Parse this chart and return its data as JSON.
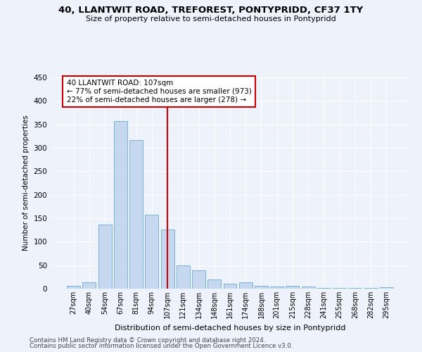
{
  "title": "40, LLANTWIT ROAD, TREFOREST, PONTYPRIDD, CF37 1TY",
  "subtitle": "Size of property relative to semi-detached houses in Pontypridd",
  "xlabel": "Distribution of semi-detached houses by size in Pontypridd",
  "ylabel": "Number of semi-detached properties",
  "categories": [
    "27sqm",
    "40sqm",
    "54sqm",
    "67sqm",
    "81sqm",
    "94sqm",
    "107sqm",
    "121sqm",
    "134sqm",
    "148sqm",
    "161sqm",
    "174sqm",
    "188sqm",
    "201sqm",
    "215sqm",
    "228sqm",
    "241sqm",
    "255sqm",
    "268sqm",
    "282sqm",
    "295sqm"
  ],
  "values": [
    6,
    13,
    137,
    357,
    317,
    157,
    126,
    50,
    39,
    20,
    10,
    14,
    6,
    5,
    6,
    5,
    2,
    1,
    1,
    1,
    3
  ],
  "bar_color": "#c5d8f0",
  "bar_edge_color": "#6aabd2",
  "vline_x_index": 6,
  "vline_color": "#cc0000",
  "annotation_line1": "40 LLANTWIT ROAD: 107sqm",
  "annotation_line2": "← 77% of semi-detached houses are smaller (973)",
  "annotation_line3": "22% of semi-detached houses are larger (278) →",
  "annotation_box_color": "#ffffff",
  "annotation_box_edge_color": "#cc0000",
  "ylim": [
    0,
    450
  ],
  "yticks": [
    0,
    50,
    100,
    150,
    200,
    250,
    300,
    350,
    400,
    450
  ],
  "footer_line1": "Contains HM Land Registry data © Crown copyright and database right 2024.",
  "footer_line2": "Contains public sector information licensed under the Open Government Licence v3.0.",
  "background_color": "#eef2fa",
  "grid_color": "#ffffff"
}
